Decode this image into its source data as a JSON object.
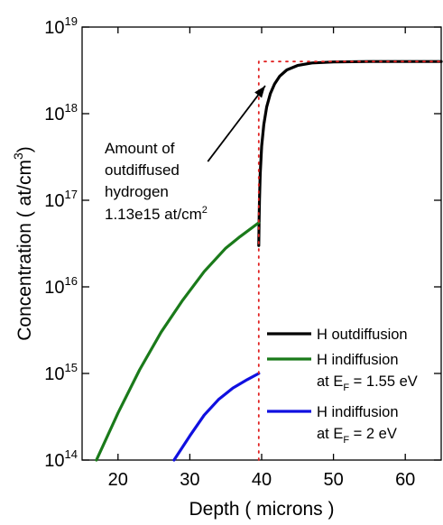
{
  "chart_data": {
    "type": "line",
    "title": "",
    "xlabel": "Depth ( microns )",
    "ylabel_main": "Concentration ( at/cm",
    "ylabel_sup": "3",
    "ylabel_close": ")",
    "xlim": [
      15,
      65
    ],
    "ylim_log10": [
      14,
      19
    ],
    "y_scale": "log",
    "x_ticks": [
      20,
      30,
      40,
      50,
      60
    ],
    "x_tick_labels": [
      "20",
      "30",
      "40",
      "50",
      "60"
    ],
    "y_ticks": [
      14,
      15,
      16,
      17,
      18,
      19
    ],
    "y_tick_base": "10",
    "y_tick_exponents": [
      "14",
      "15",
      "16",
      "17",
      "18",
      "19"
    ],
    "grid": false,
    "legend_position": "bottom-right",
    "series": [
      {
        "name": "H outdiffusion",
        "color": "#000000",
        "x": [
          39.6,
          39.65,
          39.7,
          39.8,
          40.0,
          40.3,
          40.7,
          41.2,
          41.8,
          42.5,
          43.5,
          45.0,
          47.0,
          50.0,
          55.0,
          60.0,
          65.0
        ],
        "y": [
          3e+16,
          6e+16,
          1e+17,
          2e+17,
          4.2e+17,
          7.5e+17,
          1.2e+18,
          1.7e+18,
          2.2e+18,
          2.7e+18,
          3.2e+18,
          3.6e+18,
          3.85e+18,
          3.95e+18,
          4e+18,
          4e+18,
          4e+18
        ]
      },
      {
        "name": "H indiffusion",
        "name_line2_prefix": "at E",
        "name_line2_sub": "F",
        "name_line2_suffix": " = 1.55 eV",
        "color": "#1a7a1a",
        "x": [
          17.0,
          20.0,
          23.0,
          26.0,
          29.0,
          32.0,
          35.0,
          37.0,
          39.6
        ],
        "y": [
          100000000000000.0,
          350000000000000.0,
          1100000000000000.0,
          3000000000000000.0,
          7000000000000000.0,
          1.5e+16,
          2.8e+16,
          3.8e+16,
          5.5e+16
        ]
      },
      {
        "name": "H indiffusion",
        "name_line2_prefix": "at E",
        "name_line2_sub": "F",
        "name_line2_suffix": " = 2 eV",
        "color": "#1010e0",
        "x": [
          27.8,
          30.0,
          32.0,
          34.0,
          36.0,
          38.0,
          39.6
        ],
        "y": [
          100000000000000.0,
          190000000000000.0,
          330000000000000.0,
          500000000000000.0,
          680000000000000.0,
          850000000000000.0,
          1000000000000000.0
        ]
      },
      {
        "name": "",
        "style": "dotted",
        "color": "#e02020",
        "x": [
          39.6,
          39.6,
          65.0
        ],
        "y": [
          100000000000000.0,
          4e+18,
          4e+18
        ]
      }
    ],
    "annotation": {
      "lines": [
        "Amount of",
        "outdiffused",
        "hydrogen"
      ],
      "last_line": "1.13e15 at/cm",
      "last_line_sup": "2",
      "arrow_from": [
        32.5,
        2.8e+17
      ],
      "arrow_to": [
        40.5,
        2.1e+18
      ]
    }
  }
}
